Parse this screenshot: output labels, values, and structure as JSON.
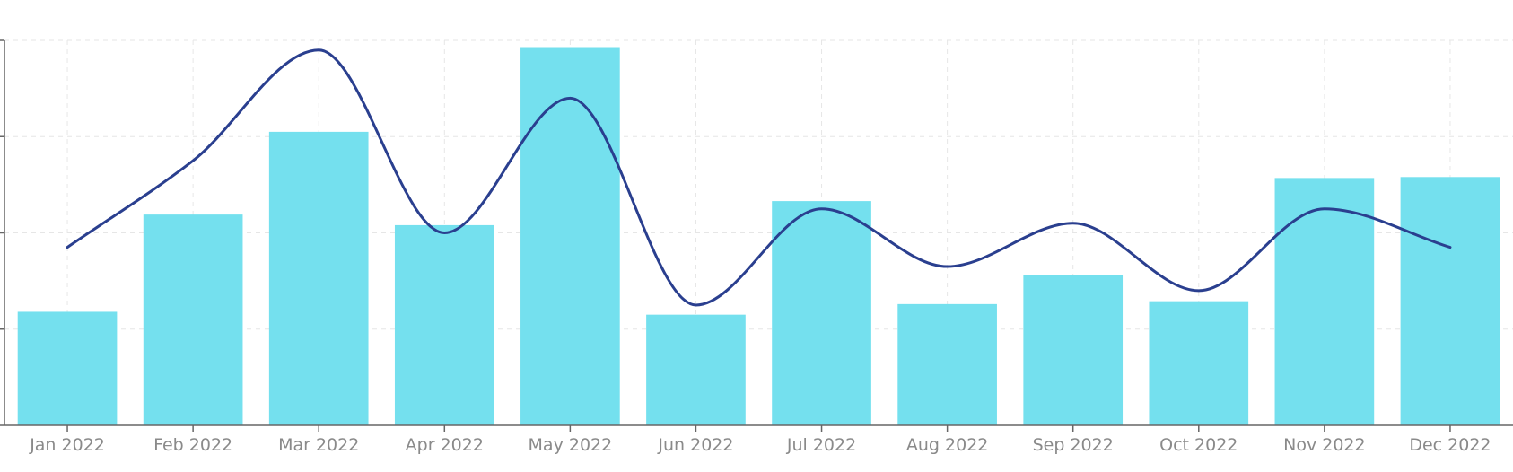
{
  "chart_data": {
    "type": "bar",
    "categories": [
      "Jan 2022",
      "Feb 2022",
      "Mar 2022",
      "Apr 2022",
      "May 2022",
      "Jun 2022",
      "Jul 2022",
      "Aug 2022",
      "Sep 2022",
      "Oct 2022",
      "Nov 2022",
      "Dec 2022"
    ],
    "series": [
      {
        "type": "bar",
        "values": [
          1.18,
          2.19,
          3.05,
          2.08,
          3.93,
          1.15,
          2.33,
          1.26,
          1.56,
          1.29,
          2.57,
          2.58
        ],
        "color": "#74e0ee"
      },
      {
        "type": "line",
        "values": [
          1.85,
          2.75,
          3.9,
          2.0,
          3.4,
          1.25,
          2.25,
          1.65,
          2.1,
          1.4,
          2.25,
          1.85
        ],
        "color": "#2a3f8f",
        "smooth": true
      }
    ],
    "ylim": [
      0,
      4
    ],
    "y_ticks": [
      0,
      1,
      2,
      3,
      4
    ],
    "grid": true,
    "y_tick_labels_visible": false,
    "title": "",
    "xlabel": "",
    "ylabel": ""
  }
}
